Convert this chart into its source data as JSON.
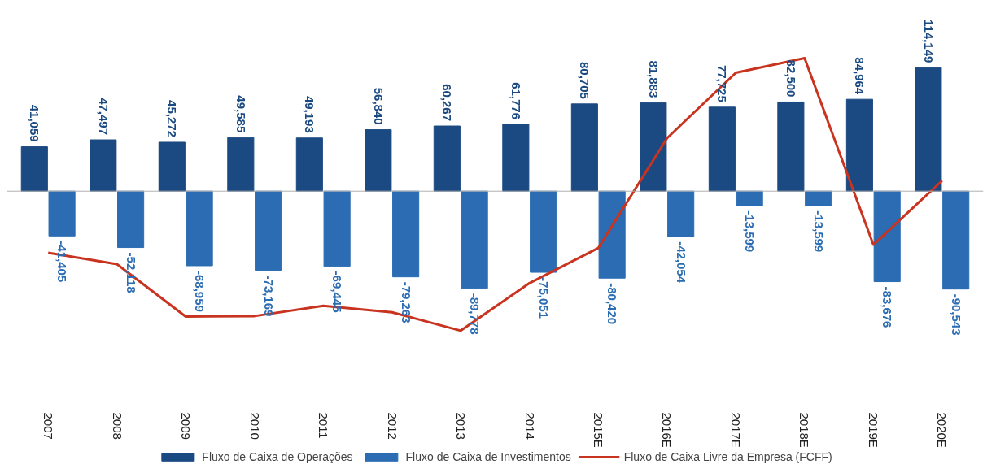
{
  "chart_data": {
    "type": "bar",
    "categories": [
      "2007",
      "2008",
      "2009",
      "2010",
      "2011",
      "2012",
      "2013",
      "2014",
      "2015E",
      "2016E",
      "2017E",
      "2018E",
      "2019E",
      "2020E"
    ],
    "series": [
      {
        "name": "Fluxo de Caixa de Operações",
        "color": "#1b4a82",
        "values": [
          41059,
          47497,
          45272,
          49585,
          49193,
          56840,
          60267,
          61776,
          80705,
          81883,
          77725,
          82500,
          84964,
          114149
        ],
        "value_labels": [
          "41,059",
          "47,497",
          "45,272",
          "49,585",
          "49,193",
          "56,840",
          "60,267",
          "61,776",
          "80,705",
          "81,883",
          "77,725",
          "82,500",
          "84,964",
          "114,149"
        ]
      },
      {
        "name": "Fluxo de Caixa de Investimentos",
        "color": "#2b6cb3",
        "values": [
          -41405,
          -52118,
          -68959,
          -73169,
          -69445,
          -79263,
          -89778,
          -75051,
          -80420,
          -42054,
          -13599,
          -13599,
          -83676,
          -90543
        ],
        "value_labels": [
          "-41,405",
          "-52,118",
          "-68,959",
          "-73,169",
          "-69,445",
          "-79,263",
          "-89,778",
          "-75,051",
          "-80,420",
          "-42,054",
          "-13,599",
          "-13,599",
          "-83,676",
          "-90,543"
        ]
      },
      {
        "name": "Fluxo de Caixa Livre da Empresa (FCFF)",
        "type": "line",
        "color": "#c8341f",
        "values": [
          -57000,
          -67500,
          -116000,
          -115500,
          -106000,
          -112000,
          -129000,
          -85000,
          -52500,
          49000,
          109500,
          123000,
          -49500,
          9750
        ]
      }
    ],
    "legend": "bottom",
    "grid": false
  }
}
